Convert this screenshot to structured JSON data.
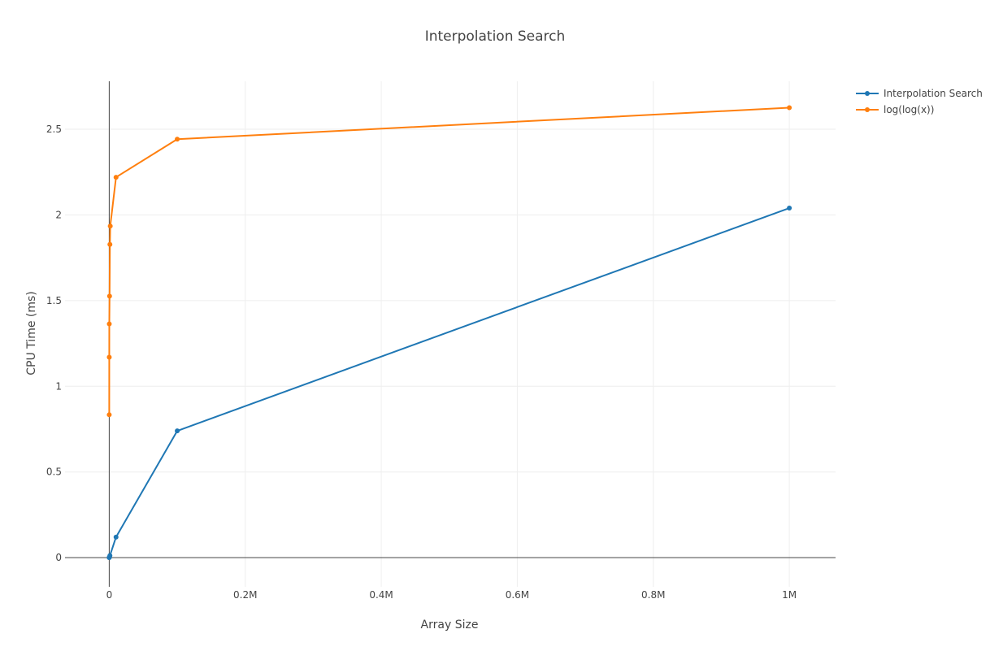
{
  "chart_data": {
    "type": "line",
    "title": "Interpolation Search",
    "xlabel": "Array Size",
    "ylabel": "CPU Time (ms)",
    "xlim": [
      -65000,
      1068000
    ],
    "ylim": [
      -0.17,
      2.78
    ],
    "x_ticks": [
      0,
      200000,
      400000,
      600000,
      800000,
      1000000
    ],
    "x_tick_labels": [
      "0",
      "0.2M",
      "0.4M",
      "0.6M",
      "0.8M",
      "1M"
    ],
    "y_ticks": [
      0,
      0.5,
      1,
      1.5,
      2,
      2.5
    ],
    "y_tick_labels": [
      "0",
      "0.5",
      "1",
      "1.5",
      "2",
      "2.5"
    ],
    "grid": true,
    "legend_position": "top-right",
    "series": [
      {
        "name": "Interpolation Search",
        "color": "#1f77b4",
        "x": [
          10,
          100,
          1000,
          10000,
          100000,
          1000000
        ],
        "y": [
          0.0002,
          0.0025,
          0.012,
          0.12,
          0.74,
          2.04
        ]
      },
      {
        "name": "log(log(x))",
        "color": "#ff7f0e",
        "x": [
          10,
          50,
          100,
          500,
          1000,
          1500,
          10000,
          100000,
          1000000
        ],
        "y": [
          0.834,
          1.17,
          1.364,
          1.526,
          1.828,
          1.935,
          2.22,
          2.442,
          2.626
        ]
      }
    ]
  }
}
